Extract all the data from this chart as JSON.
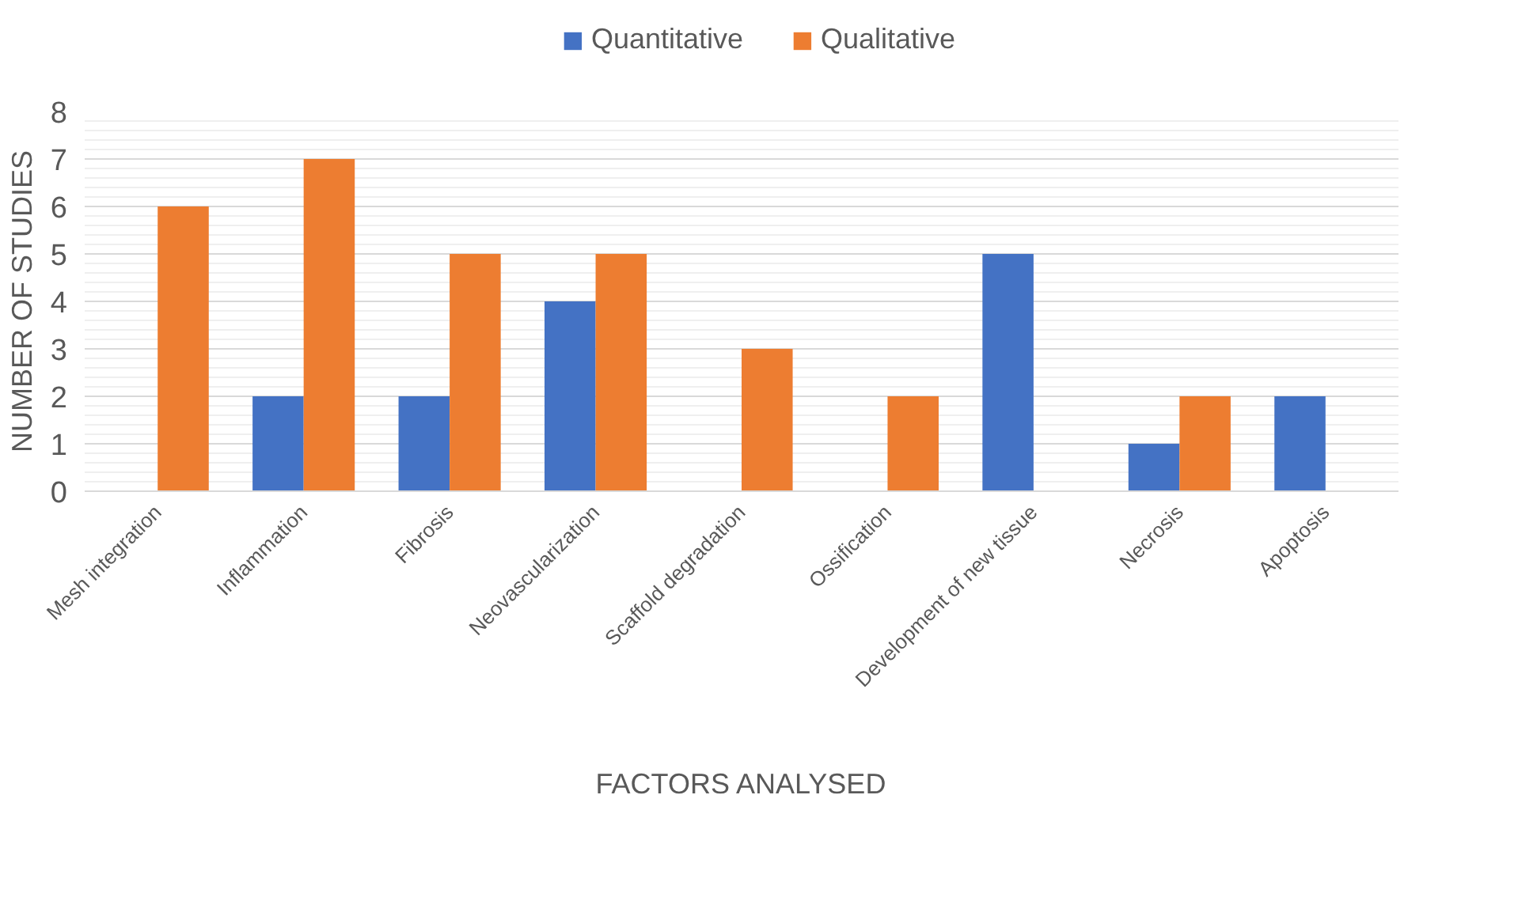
{
  "chart_data": {
    "type": "bar",
    "xlabel": "FACTORS ANALYSED",
    "ylabel": "NUMBER OF STUDIES",
    "categories": [
      "Mesh integration",
      "Inflammation",
      "Fibrosis",
      "Neovascularization",
      "Scaffold degradation",
      "Ossification",
      "Development of new tissue",
      "Necrosis",
      "Apoptosis"
    ],
    "series": [
      {
        "name": "Quantitative",
        "color": "#4472c4",
        "values": [
          0,
          2,
          2,
          4,
          0,
          0,
          5,
          1,
          2
        ]
      },
      {
        "name": "Qualitative",
        "color": "#ed7d31",
        "values": [
          6,
          7,
          5,
          5,
          3,
          2,
          0,
          2,
          0
        ]
      }
    ],
    "ylim": [
      0,
      8
    ],
    "yticks": [
      0,
      1,
      2,
      3,
      4,
      5,
      6,
      7,
      8
    ],
    "grid": "y",
    "legend": "top"
  }
}
